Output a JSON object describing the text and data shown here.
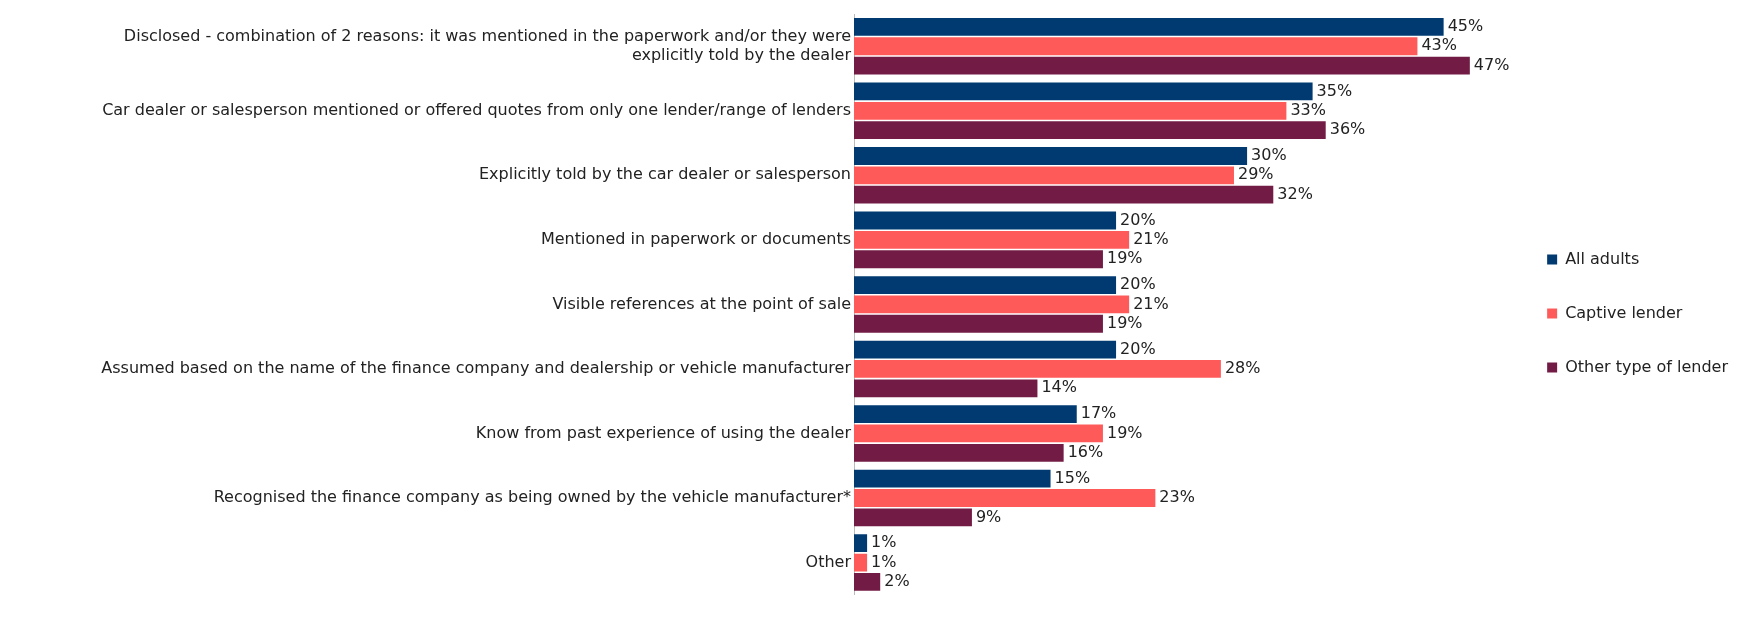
{
  "chart_data": {
    "type": "bar",
    "orientation": "horizontal",
    "legend": "right",
    "categories": [
      "Disclosed - combination of 2 reasons: it was mentioned in the paperwork and/or they were explicitly told by the dealer",
      "Car dealer or salesperson mentioned or offered quotes from only one lender/range of lenders",
      "Explicitly told by the car dealer or salesperson",
      "Mentioned in paperwork or documents",
      "Visible references at the point of sale",
      "Assumed based on the name of the finance company and dealership or vehicle manufacturer",
      "Know from past experience of using the dealer",
      "Recognised the finance company as being owned by the vehicle manufacturer*",
      "Other"
    ],
    "series": [
      {
        "name": "All adults",
        "color": "#003a70",
        "values": [
          45,
          35,
          30,
          20,
          20,
          20,
          17,
          15,
          1
        ],
        "value_labels": [
          "45%",
          "35%",
          "30%",
          "20%",
          "20%",
          "20%",
          "17%",
          "15%",
          "1%"
        ]
      },
      {
        "name": "Captive lender",
        "color": "#ff5a5a",
        "values": [
          43,
          33,
          29,
          21,
          21,
          28,
          19,
          23,
          1
        ],
        "value_labels": [
          "43%",
          "33%",
          "29%",
          "21%",
          "21%",
          "28%",
          "19%",
          "23%",
          "1%"
        ]
      },
      {
        "name": "Other type of lender",
        "color": "#721c45",
        "values": [
          47,
          36,
          32,
          19,
          19,
          14,
          16,
          9,
          2
        ],
        "value_labels": [
          "47%",
          "36%",
          "32%",
          "19%",
          "19%",
          "14%",
          "16%",
          "9%",
          "2%"
        ]
      }
    ]
  }
}
